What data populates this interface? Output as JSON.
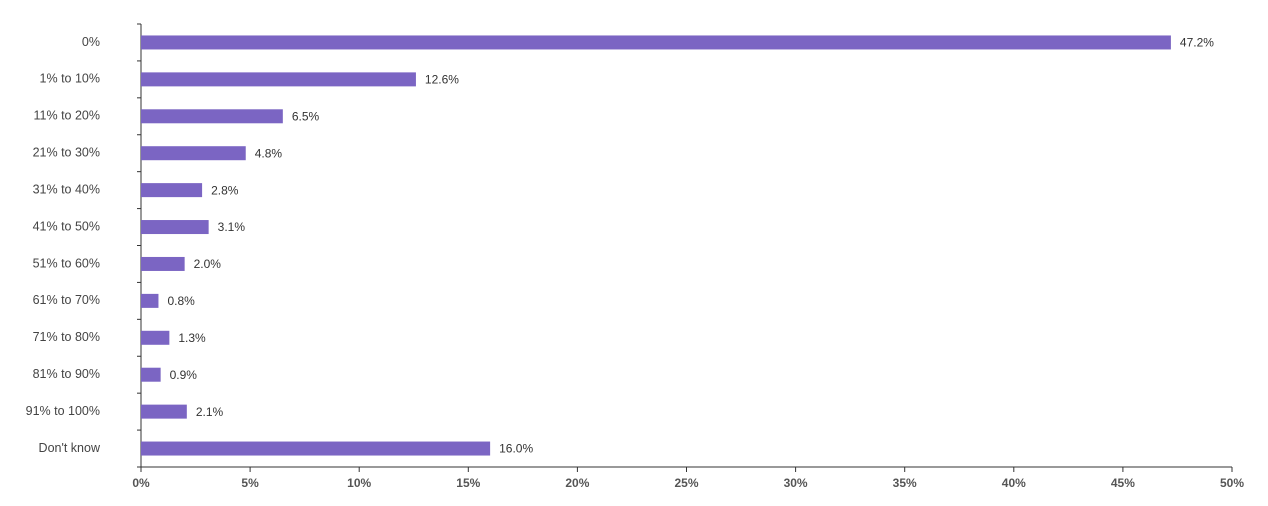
{
  "chart_data": {
    "type": "hbar",
    "categories": [
      "0%",
      "1% to 10%",
      "11% to 20%",
      "21% to 30%",
      "31% to 40%",
      "41% to 50%",
      "51% to 60%",
      "61% to 70%",
      "71% to 80%",
      "81% to 90%",
      "91% to 100%",
      "Don't know"
    ],
    "values": [
      47.2,
      12.6,
      6.5,
      4.8,
      2.8,
      3.1,
      2.0,
      0.8,
      1.3,
      0.9,
      2.1,
      16.0
    ],
    "value_labels": [
      "47.2%",
      "12.6%",
      "6.5%",
      "4.8%",
      "2.8%",
      "3.1%",
      "2.0%",
      "0.8%",
      "1.3%",
      "0.9%",
      "2.1%",
      "16.0%"
    ],
    "color": "#7b65c3",
    "xlim": [
      0,
      50
    ],
    "xticks": [
      {
        "value": 0,
        "label": "0%"
      },
      {
        "value": 5,
        "label": "5%"
      },
      {
        "value": 10,
        "label": "10%"
      },
      {
        "value": 15,
        "label": "15%"
      },
      {
        "value": 20,
        "label": "20%"
      },
      {
        "value": 25,
        "label": "25%"
      },
      {
        "value": 30,
        "label": "30%"
      },
      {
        "value": 35,
        "label": "35%"
      },
      {
        "value": 40,
        "label": "40%"
      },
      {
        "value": 45,
        "label": "45%"
      },
      {
        "value": 50,
        "label": "50%"
      }
    ],
    "grid": false
  }
}
